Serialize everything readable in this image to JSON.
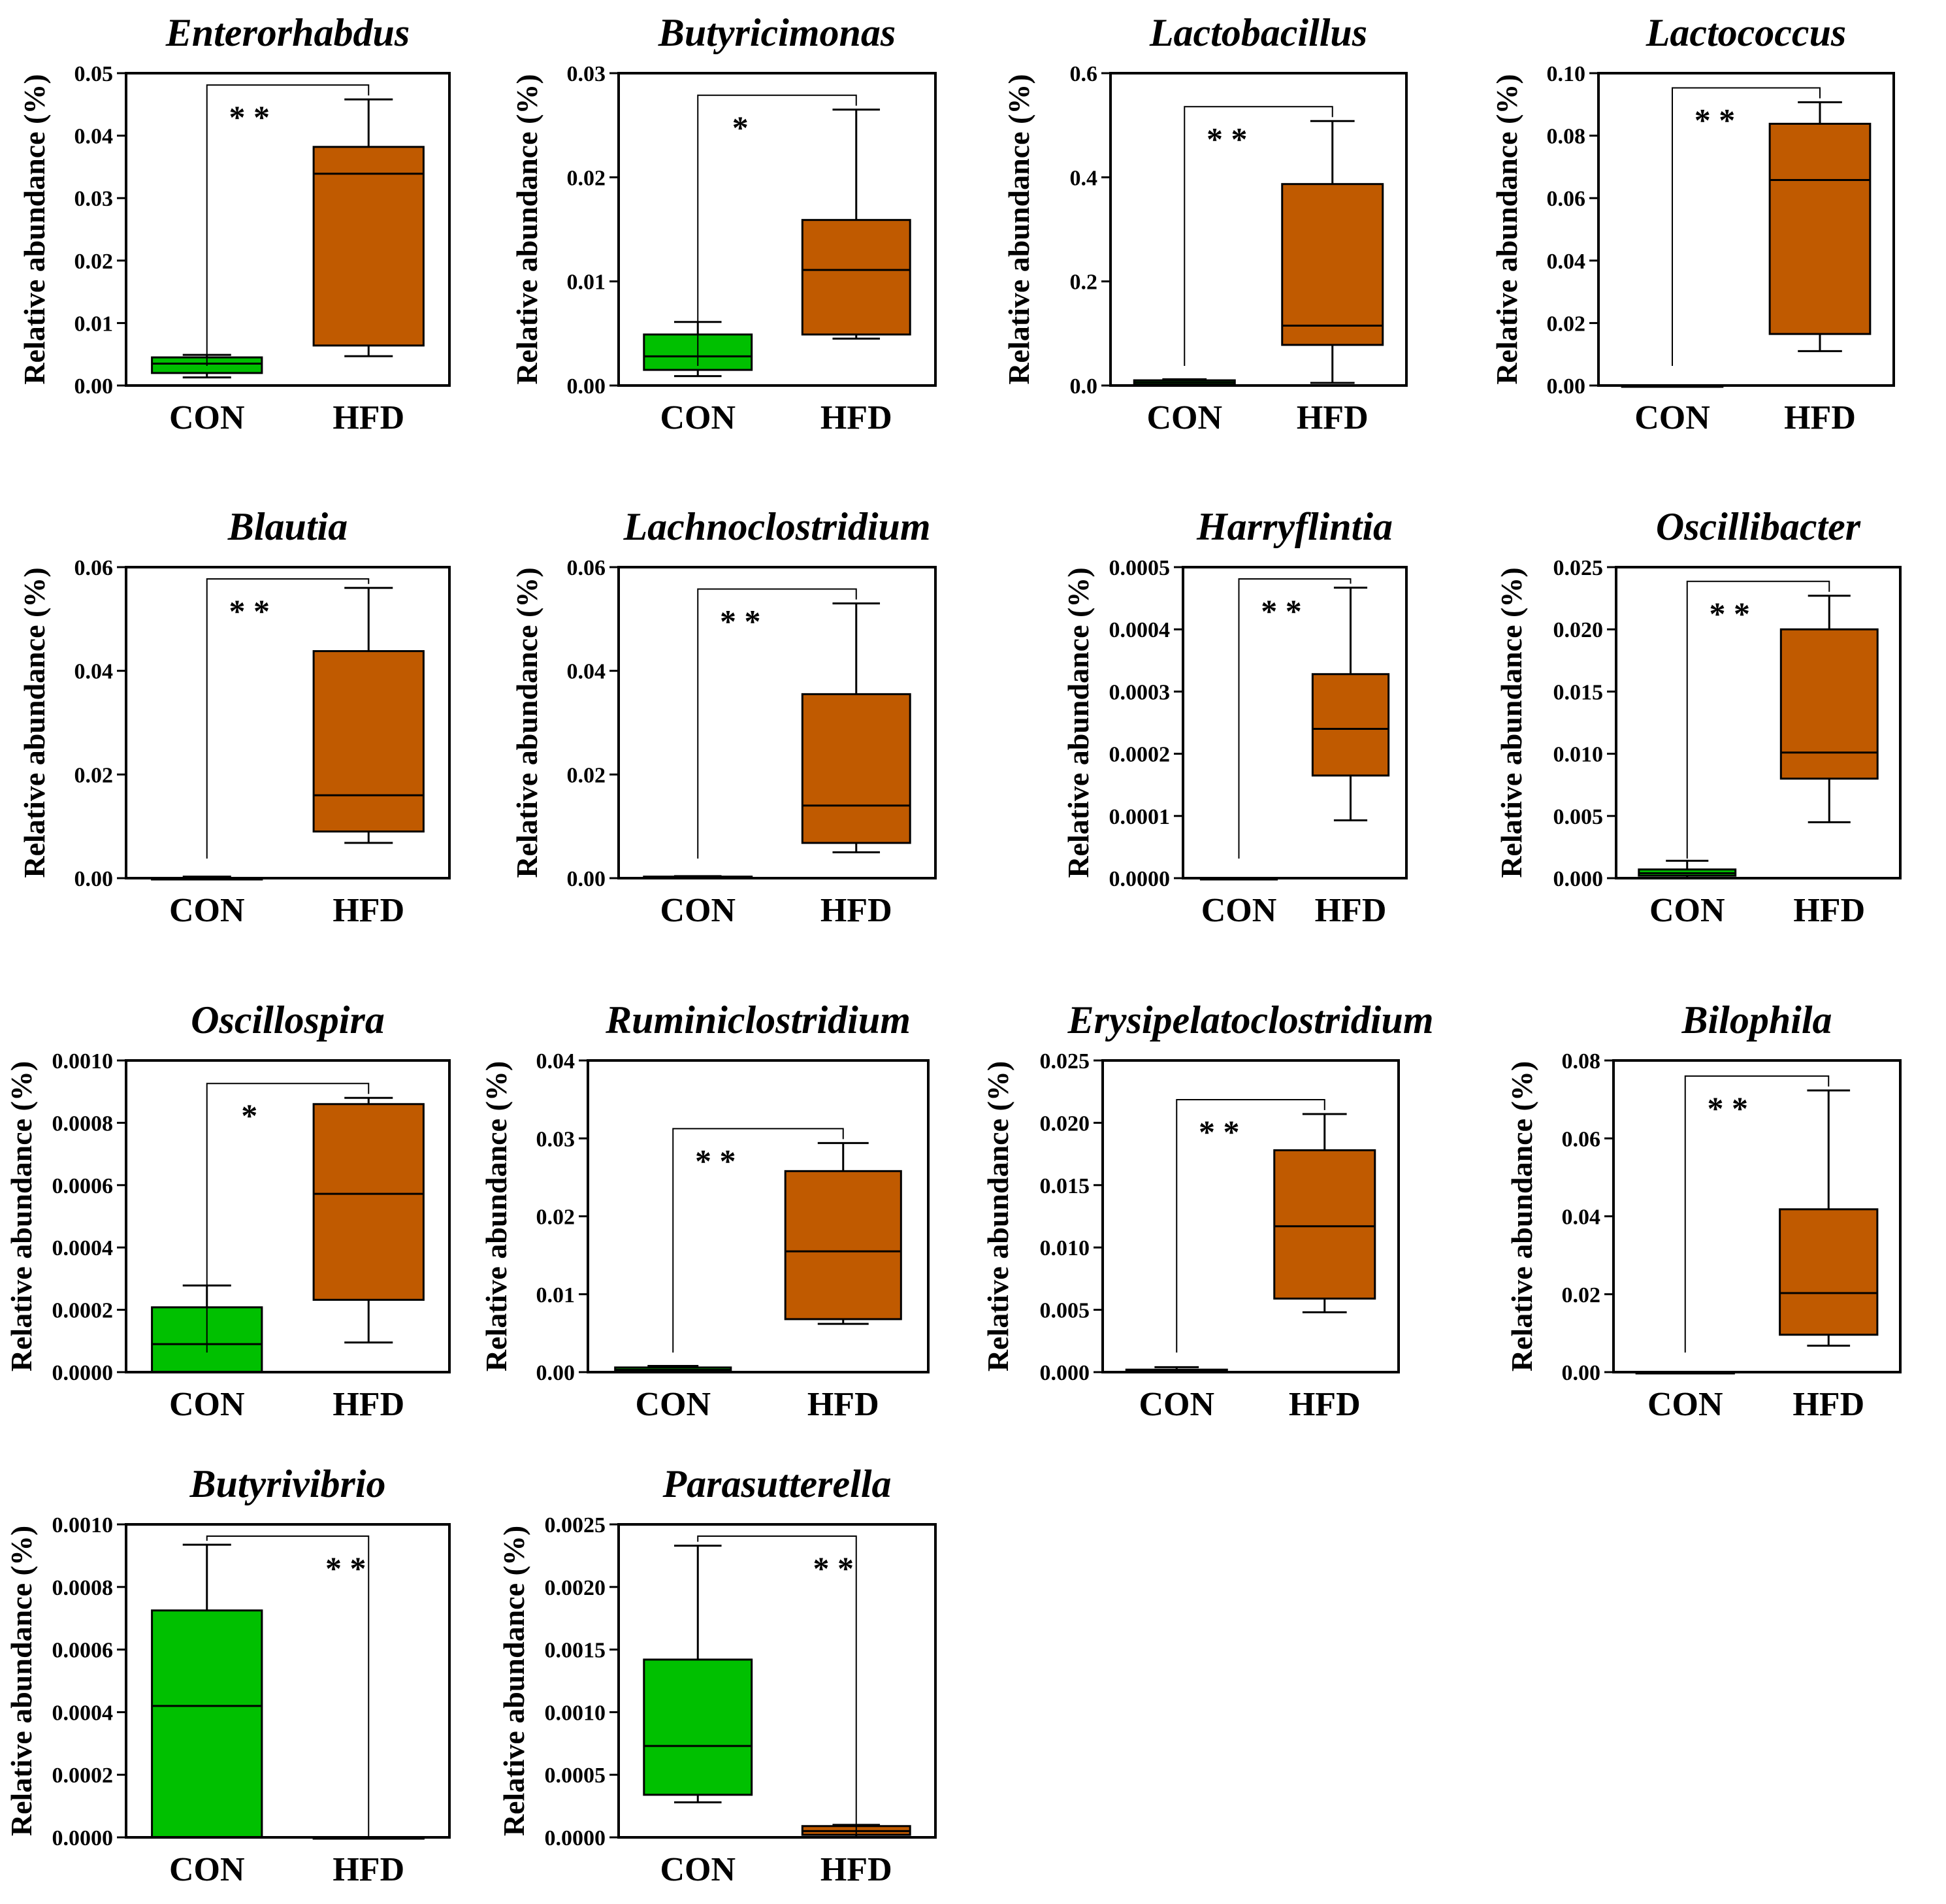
{
  "figure": {
    "colors": {
      "CON": "#00c000",
      "HFD": "#c05a00",
      "stroke": "#000000"
    },
    "ylabel": "Relative abundance (%)",
    "categories": [
      "CON",
      "HFD"
    ]
  },
  "chart_data": [
    {
      "type": "box",
      "title": "Enterorhabdus",
      "ylabel": "Relative abundance (%)",
      "ylim": [
        0,
        0.05
      ],
      "yticks": [
        "0.00",
        "0.01",
        "0.02",
        "0.03",
        "0.04",
        "0.05"
      ],
      "categories": [
        "CON",
        "HFD"
      ],
      "significance": "* *",
      "series": [
        {
          "name": "CON",
          "min": 0.0013,
          "q1": 0.002,
          "median": 0.0035,
          "q3": 0.0045,
          "max": 0.0049
        },
        {
          "name": "HFD",
          "min": 0.0047,
          "q1": 0.0064,
          "median": 0.0339,
          "q3": 0.0382,
          "max": 0.0458
        }
      ]
    },
    {
      "type": "box",
      "title": "Butyricimonas",
      "ylabel": "Relative abundance (%)",
      "ylim": [
        0,
        0.03
      ],
      "yticks": [
        "0.00",
        "0.01",
        "0.02",
        "0.03"
      ],
      "categories": [
        "CON",
        "HFD"
      ],
      "significance": "*",
      "series": [
        {
          "name": "CON",
          "min": 0.0009,
          "q1": 0.0015,
          "median": 0.0028,
          "q3": 0.0049,
          "max": 0.0061
        },
        {
          "name": "HFD",
          "min": 0.0045,
          "q1": 0.0049,
          "median": 0.0111,
          "q3": 0.0159,
          "max": 0.0265
        }
      ]
    },
    {
      "type": "box",
      "title": "Lactobacillus",
      "ylabel": "Relative abundance (%)",
      "ylim": [
        0,
        0.6
      ],
      "yticks": [
        "0.0",
        "0.2",
        "0.4",
        "0.6"
      ],
      "categories": [
        "CON",
        "HFD"
      ],
      "significance": "* *",
      "series": [
        {
          "name": "CON",
          "min": 0.0,
          "q1": 0.002,
          "median": 0.006,
          "q3": 0.01,
          "max": 0.012
        },
        {
          "name": "HFD",
          "min": 0.005,
          "q1": 0.078,
          "median": 0.115,
          "q3": 0.387,
          "max": 0.508
        }
      ]
    },
    {
      "type": "box",
      "title": "Lactococcus",
      "ylabel": "Relative abundance (%)",
      "ylim": [
        0,
        0.1
      ],
      "yticks": [
        "0.00",
        "0.02",
        "0.04",
        "0.06",
        "0.08",
        "0.10"
      ],
      "categories": [
        "CON",
        "HFD"
      ],
      "significance": "* *",
      "series": [
        {
          "name": "CON",
          "min": 0.0,
          "q1": 0.0,
          "median": 0.0,
          "q3": 0.0,
          "max": 0.0
        },
        {
          "name": "HFD",
          "min": 0.011,
          "q1": 0.0165,
          "median": 0.0658,
          "q3": 0.0838,
          "max": 0.0907
        }
      ]
    },
    {
      "type": "box",
      "title": "Blautia",
      "ylabel": "Relative abundance (%)",
      "ylim": [
        0,
        0.06
      ],
      "yticks": [
        "0.00",
        "0.02",
        "0.04",
        "0.06"
      ],
      "categories": [
        "CON",
        "HFD"
      ],
      "significance": "* *",
      "series": [
        {
          "name": "CON",
          "min": 0.0,
          "q1": 0.0,
          "median": 0.0,
          "q3": 0.0,
          "max": 0.0003
        },
        {
          "name": "HFD",
          "min": 0.0068,
          "q1": 0.009,
          "median": 0.016,
          "q3": 0.0438,
          "max": 0.056
        }
      ]
    },
    {
      "type": "box",
      "title": "Lachnoclostridium",
      "ylabel": "Relative abundance (%)",
      "ylim": [
        0,
        0.06
      ],
      "yticks": [
        "0.00",
        "0.02",
        "0.04",
        "0.06"
      ],
      "categories": [
        "CON",
        "HFD"
      ],
      "significance": "* *",
      "series": [
        {
          "name": "CON",
          "min": 0.0,
          "q1": 0.0001,
          "median": 0.0002,
          "q3": 0.0003,
          "max": 0.0004
        },
        {
          "name": "HFD",
          "min": 0.005,
          "q1": 0.0068,
          "median": 0.014,
          "q3": 0.0355,
          "max": 0.053
        }
      ]
    },
    {
      "type": "box",
      "title": "Harryflintia",
      "ylabel": "Relative abundance (%)",
      "ylim": [
        0,
        0.0005
      ],
      "yticks": [
        "0.0000",
        "0.0001",
        "0.0002",
        "0.0003",
        "0.0004",
        "0.0005"
      ],
      "categories": [
        "CON",
        "HFD"
      ],
      "significance": "* *",
      "series": [
        {
          "name": "CON",
          "min": 0.0,
          "q1": 0.0,
          "median": 0.0,
          "q3": 0.0,
          "max": 0.0
        },
        {
          "name": "HFD",
          "min": 9.3e-05,
          "q1": 0.000165,
          "median": 0.00024,
          "q3": 0.000328,
          "max": 0.000467
        }
      ]
    },
    {
      "type": "box",
      "title": "Oscillibacter",
      "ylabel": "Relative abundance (%)",
      "ylim": [
        0,
        0.025
      ],
      "yticks": [
        "0.000",
        "0.005",
        "0.010",
        "0.015",
        "0.020",
        "0.025"
      ],
      "categories": [
        "CON",
        "HFD"
      ],
      "significance": "* *",
      "series": [
        {
          "name": "CON",
          "min": 0.0,
          "q1": 0.0002,
          "median": 0.0004,
          "q3": 0.0007,
          "max": 0.0014
        },
        {
          "name": "HFD",
          "min": 0.0045,
          "q1": 0.008,
          "median": 0.0101,
          "q3": 0.02,
          "max": 0.0227
        }
      ]
    },
    {
      "type": "box",
      "title": "Oscillospira",
      "ylabel": "Relative abundance (%)",
      "ylim": [
        0,
        0.001
      ],
      "yticks": [
        "0.0000",
        "0.0002",
        "0.0004",
        "0.0006",
        "0.0008",
        "0.0010"
      ],
      "categories": [
        "CON",
        "HFD"
      ],
      "significance": "*",
      "series": [
        {
          "name": "CON",
          "min": 0.0,
          "q1": 0.0,
          "median": 9e-05,
          "q3": 0.000208,
          "max": 0.000278
        },
        {
          "name": "HFD",
          "min": 9.5e-05,
          "q1": 0.000232,
          "median": 0.000572,
          "q3": 0.00086,
          "max": 0.00088
        }
      ]
    },
    {
      "type": "box",
      "title": "Ruminiclostridium",
      "ylabel": "Relative abundance (%)",
      "ylim": [
        0,
        0.04
      ],
      "yticks": [
        "0.00",
        "0.01",
        "0.02",
        "0.03",
        "0.04"
      ],
      "categories": [
        "CON",
        "HFD"
      ],
      "significance": "* *",
      "series": [
        {
          "name": "CON",
          "min": 0.0,
          "q1": 0.0001,
          "median": 0.0003,
          "q3": 0.0006,
          "max": 0.0008
        },
        {
          "name": "HFD",
          "min": 0.0062,
          "q1": 0.0068,
          "median": 0.0155,
          "q3": 0.0258,
          "max": 0.0294
        }
      ]
    },
    {
      "type": "box",
      "title": "Erysipelatoclostridium",
      "ylabel": "Relative abundance (%)",
      "ylim": [
        0,
        0.025
      ],
      "yticks": [
        "0.000",
        "0.005",
        "0.010",
        "0.015",
        "0.020",
        "0.025"
      ],
      "categories": [
        "CON",
        "HFD"
      ],
      "significance": "* *",
      "series": [
        {
          "name": "CON",
          "min": 0.0,
          "q1": 0.0,
          "median": 0.0001,
          "q3": 0.0002,
          "max": 0.0004
        },
        {
          "name": "HFD",
          "min": 0.0048,
          "q1": 0.0059,
          "median": 0.0117,
          "q3": 0.0178,
          "max": 0.0207
        }
      ]
    },
    {
      "type": "box",
      "title": "Bilophila",
      "ylabel": "Relative abundance (%)",
      "ylim": [
        0,
        0.08
      ],
      "yticks": [
        "0.00",
        "0.02",
        "0.04",
        "0.06",
        "0.08"
      ],
      "categories": [
        "CON",
        "HFD"
      ],
      "significance": "* *",
      "series": [
        {
          "name": "CON",
          "min": 0.0,
          "q1": 0.0,
          "median": 0.0,
          "q3": 0.0,
          "max": 0.0
        },
        {
          "name": "HFD",
          "min": 0.0068,
          "q1": 0.0096,
          "median": 0.0203,
          "q3": 0.0418,
          "max": 0.0723
        }
      ]
    },
    {
      "type": "box",
      "title": "Butyrivibrio",
      "ylabel": "Relative abundance (%)",
      "ylim": [
        0,
        0.001
      ],
      "yticks": [
        "0.0000",
        "0.0002",
        "0.0004",
        "0.0006",
        "0.0008",
        "0.0010"
      ],
      "categories": [
        "CON",
        "HFD"
      ],
      "significance": "* *",
      "series": [
        {
          "name": "CON",
          "min": 0.0,
          "q1": 0.0,
          "median": 0.00042,
          "q3": 0.000725,
          "max": 0.000935
        },
        {
          "name": "HFD",
          "min": 0.0,
          "q1": 0.0,
          "median": 0.0,
          "q3": 0.0,
          "max": 0.0
        }
      ]
    },
    {
      "type": "box",
      "title": "Parasutterella",
      "ylabel": "Relative abundance (%)",
      "ylim": [
        0,
        0.0025
      ],
      "yticks": [
        "0.0000",
        "0.0005",
        "0.0010",
        "0.0015",
        "0.0020",
        "0.0025"
      ],
      "categories": [
        "CON",
        "HFD"
      ],
      "significance": "* *",
      "series": [
        {
          "name": "CON",
          "min": 0.00028,
          "q1": 0.00034,
          "median": 0.00073,
          "q3": 0.00142,
          "max": 0.00233
        },
        {
          "name": "HFD",
          "min": 0.0,
          "q1": 2e-05,
          "median": 5e-05,
          "q3": 9e-05,
          "max": 0.0001
        }
      ]
    }
  ]
}
